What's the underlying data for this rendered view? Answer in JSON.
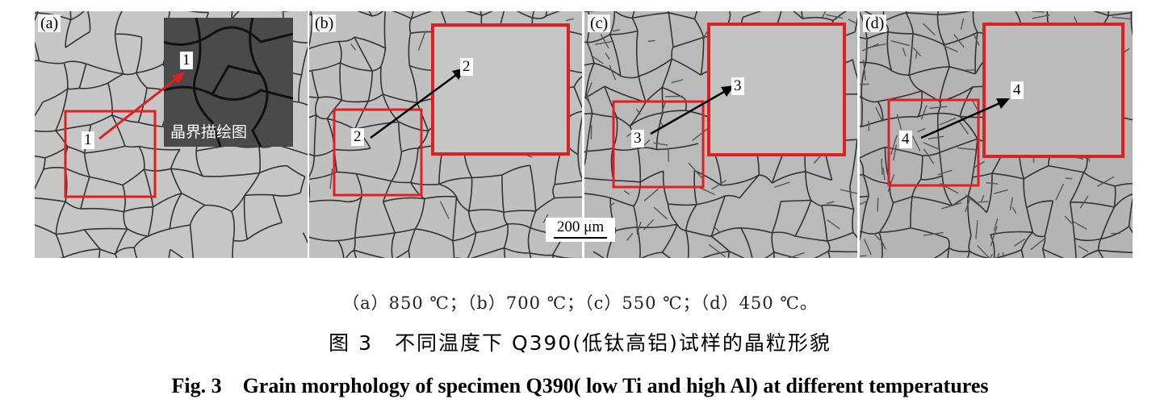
{
  "panels": [
    {
      "tag": "(a)",
      "region_label": "1",
      "inset_label": "1",
      "inset_caption": "晶界描绘图"
    },
    {
      "tag": "(b)",
      "region_label": "2",
      "inset_label": "2"
    },
    {
      "tag": "(c)",
      "region_label": "3",
      "inset_label": "3"
    },
    {
      "tag": "(d)",
      "region_label": "4",
      "inset_label": "4"
    }
  ],
  "scale_bar": "200 μm",
  "subcaption": "（a）850 ℃；（b）700 ℃；（c）550 ℃；（d）450 ℃。",
  "caption_cn": "图 3　不同温度下 Q390(低钛高铝)试样的晶粒形貌",
  "caption_en": "Fig. 3　Grain morphology of specimen Q390( low Ti and high Al) at different temperatures",
  "colors": {
    "highlight_box": "#e02020",
    "arrow_a": "#e02020",
    "arrow_other": "#000000",
    "inset_bg": "#4a4a4a"
  }
}
